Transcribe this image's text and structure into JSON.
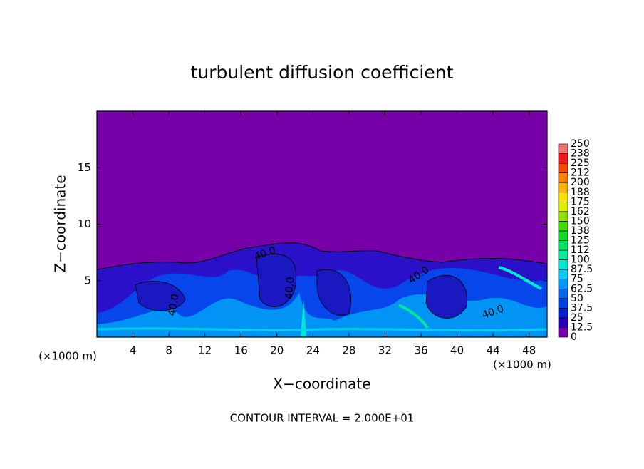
{
  "chart_data": {
    "type": "contour",
    "title": "turbulent diffusion coefficient",
    "x_label": "X−coordinate",
    "y_label": "Z−coordinate",
    "x_unit": "(×1000 m)",
    "x_unit_right": "(×1000 m)",
    "footnote": "CONTOUR INTERVAL = 2.000E+01",
    "xlim": [
      0,
      50
    ],
    "ylim": [
      0,
      20
    ],
    "xticks": [
      4,
      8,
      12,
      16,
      20,
      24,
      28,
      32,
      36,
      40,
      44,
      48
    ],
    "yticks": [
      5,
      10,
      15
    ],
    "contour_labels": [
      "40.0",
      "40.0",
      "40.0",
      "40.0",
      "40.0"
    ],
    "colorbar": {
      "levels": [
        0,
        12.5,
        25,
        37.5,
        50,
        62.5,
        75,
        87.5,
        100,
        {
          "value": 112.5,
          "label": "112"
        },
        125,
        {
          "value": 137.5,
          "label": "138"
        },
        150,
        {
          "value": 162.5,
          "label": "162"
        },
        175,
        {
          "value": 187.5,
          "label": "188"
        },
        200,
        {
          "value": 212.5,
          "label": "212"
        },
        225,
        {
          "value": 237.5,
          "label": "238"
        },
        250
      ],
      "colors": [
        "#7800a8",
        "#2800b8",
        "#0020d0",
        "#0040e8",
        "#0068f0",
        "#0098f8",
        "#00c8f8",
        "#00e8d0",
        "#00e898",
        "#00e060",
        "#10d828",
        "#40d800",
        "#90e000",
        "#d8f000",
        "#f8e000",
        "#f8b000",
        "#f88000",
        "#f84800",
        "#f01818",
        "#f07070"
      ]
    }
  }
}
